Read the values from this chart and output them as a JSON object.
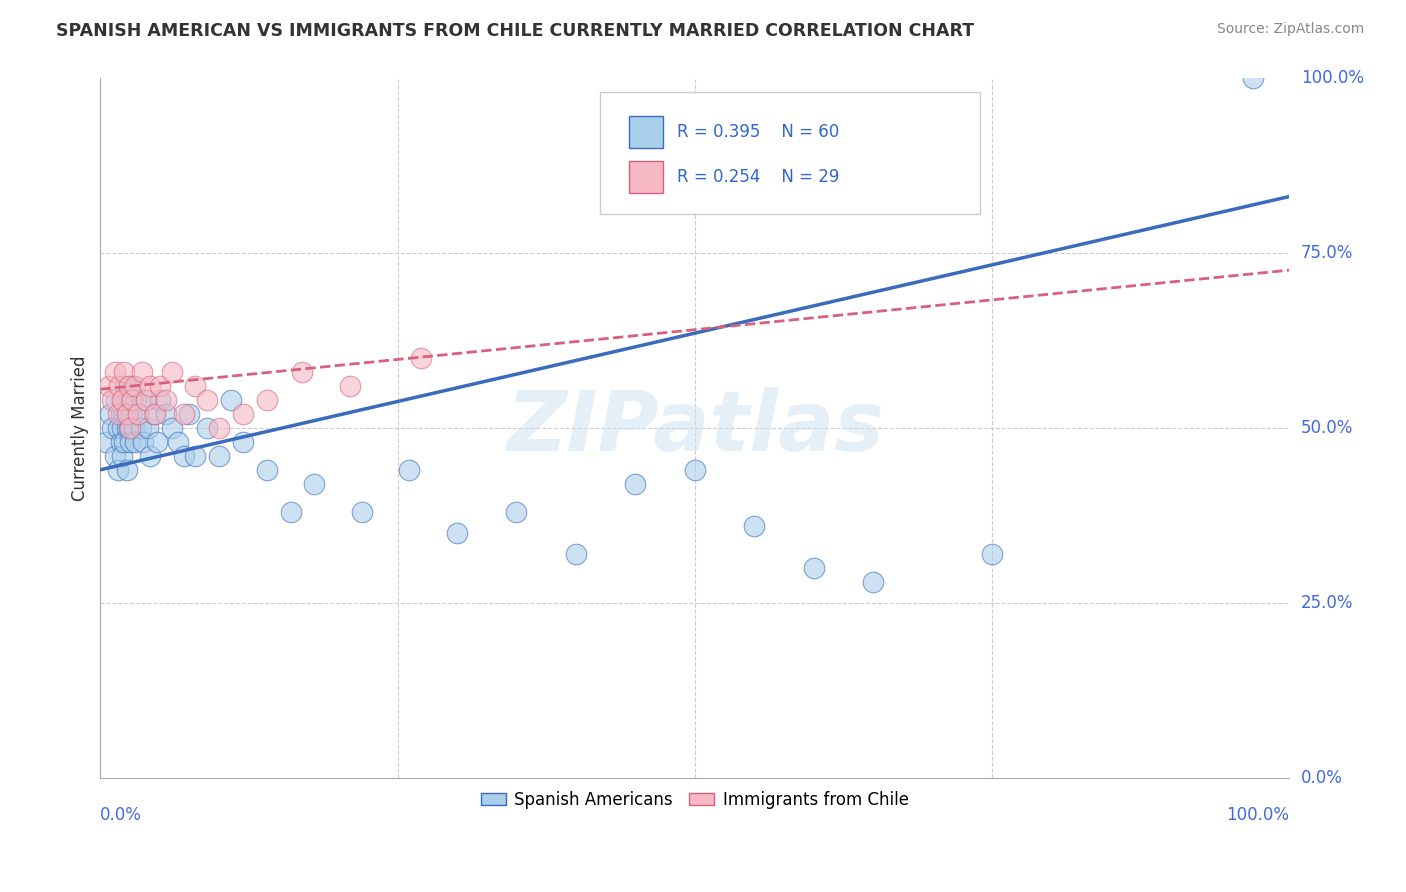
{
  "title": "SPANISH AMERICAN VS IMMIGRANTS FROM CHILE CURRENTLY MARRIED CORRELATION CHART",
  "source": "Source: ZipAtlas.com",
  "ylabel": "Currently Married",
  "watermark": "ZIPatlas",
  "legend_r1": "R = 0.395",
  "legend_n1": "N = 60",
  "legend_r2": "R = 0.254",
  "legend_n2": "N = 29",
  "blue_label": "Spanish Americans",
  "pink_label": "Immigrants from Chile",
  "xlim": [
    0,
    1.0
  ],
  "ylim": [
    0,
    1.0
  ],
  "xticks": [
    0.0,
    1.0
  ],
  "yticks": [
    0.0,
    0.25,
    0.5,
    0.75,
    1.0
  ],
  "xtick_labels_left": [
    "0.0%"
  ],
  "xtick_labels_right": [
    "100.0%"
  ],
  "ytick_labels": [
    "0.0%",
    "25.0%",
    "50.0%",
    "75.0%",
    "100.0%"
  ],
  "blue_color": "#aacfea",
  "pink_color": "#f5b8c4",
  "line_blue": "#3a6bbf",
  "line_pink": "#d9607a",
  "background": "#ffffff",
  "grid_color": "#cccccc",
  "blue_line_start_y": 0.44,
  "blue_line_end_y": 0.83,
  "pink_line_start_y": 0.555,
  "pink_line_end_y": 0.725,
  "blue_x": [
    0.005,
    0.008,
    0.01,
    0.012,
    0.013,
    0.015,
    0.015,
    0.017,
    0.017,
    0.018,
    0.018,
    0.019,
    0.02,
    0.02,
    0.021,
    0.022,
    0.022,
    0.023,
    0.024,
    0.025,
    0.025,
    0.026,
    0.027,
    0.028,
    0.029,
    0.03,
    0.032,
    0.034,
    0.036,
    0.038,
    0.04,
    0.042,
    0.045,
    0.048,
    0.05,
    0.055,
    0.06,
    0.065,
    0.07,
    0.075,
    0.08,
    0.09,
    0.1,
    0.11,
    0.12,
    0.14,
    0.16,
    0.18,
    0.22,
    0.26,
    0.3,
    0.35,
    0.4,
    0.45,
    0.5,
    0.55,
    0.6,
    0.65,
    0.75,
    0.97
  ],
  "blue_y": [
    0.48,
    0.52,
    0.5,
    0.46,
    0.54,
    0.5,
    0.44,
    0.52,
    0.48,
    0.5,
    0.46,
    0.54,
    0.52,
    0.48,
    0.56,
    0.5,
    0.44,
    0.52,
    0.5,
    0.54,
    0.48,
    0.52,
    0.56,
    0.5,
    0.48,
    0.54,
    0.52,
    0.5,
    0.48,
    0.54,
    0.5,
    0.46,
    0.52,
    0.48,
    0.54,
    0.52,
    0.5,
    0.48,
    0.46,
    0.52,
    0.46,
    0.5,
    0.46,
    0.54,
    0.48,
    0.44,
    0.38,
    0.42,
    0.38,
    0.44,
    0.35,
    0.38,
    0.32,
    0.42,
    0.44,
    0.36,
    0.3,
    0.28,
    0.32,
    1.0
  ],
  "pink_x": [
    0.007,
    0.01,
    0.012,
    0.015,
    0.016,
    0.018,
    0.02,
    0.022,
    0.024,
    0.025,
    0.027,
    0.029,
    0.032,
    0.035,
    0.038,
    0.042,
    0.046,
    0.05,
    0.055,
    0.06,
    0.07,
    0.08,
    0.09,
    0.1,
    0.12,
    0.14,
    0.17,
    0.21,
    0.27
  ],
  "pink_y": [
    0.56,
    0.54,
    0.58,
    0.52,
    0.56,
    0.54,
    0.58,
    0.52,
    0.56,
    0.5,
    0.54,
    0.56,
    0.52,
    0.58,
    0.54,
    0.56,
    0.52,
    0.56,
    0.54,
    0.58,
    0.52,
    0.56,
    0.54,
    0.5,
    0.52,
    0.54,
    0.58,
    0.56,
    0.6
  ]
}
